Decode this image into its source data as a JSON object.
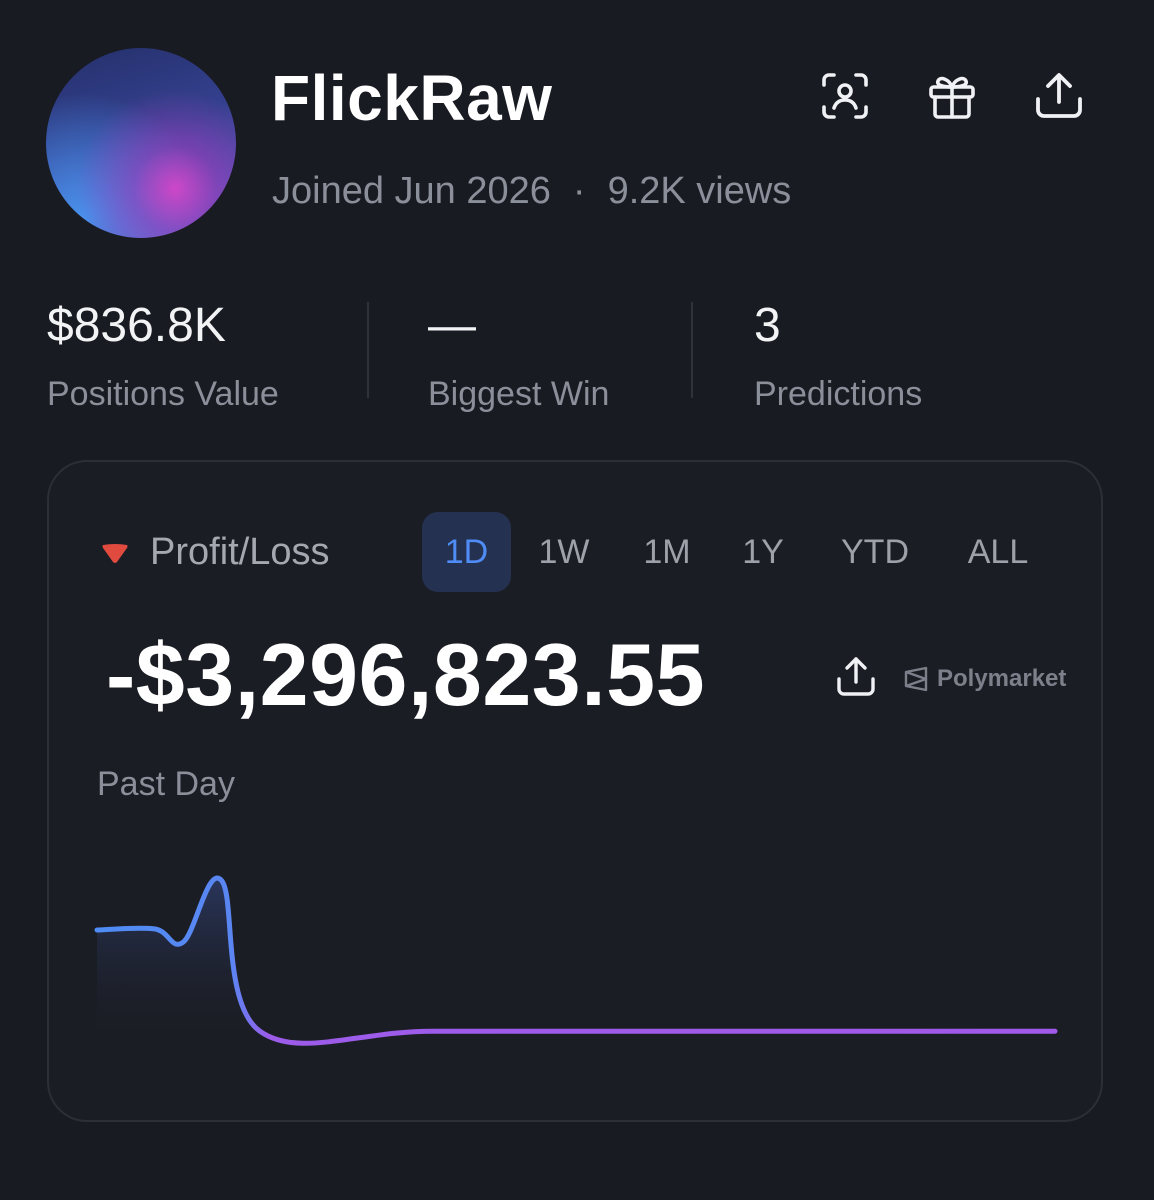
{
  "profile": {
    "username": "FlickRaw",
    "joined": "Joined Jun 2026",
    "separator": "·",
    "views": "9.2K views"
  },
  "header_actions": [
    {
      "icon": "scan-user-icon"
    },
    {
      "icon": "gift-icon"
    },
    {
      "icon": "share-icon"
    }
  ],
  "stats": [
    {
      "value": "$836.8K",
      "label": "Positions Value"
    },
    {
      "value": "—",
      "label": "Biggest Win"
    },
    {
      "value": "3",
      "label": "Predictions"
    }
  ],
  "pnl_card": {
    "label": "Profit/Loss",
    "indicator_color": "#e04a3f",
    "tabs": [
      "1D",
      "1W",
      "1M",
      "1Y",
      "YTD",
      "ALL"
    ],
    "active_tab": "1D",
    "value": "-$3,296,823.55",
    "brand": "Polymarket",
    "period_label": "Past Day",
    "accent": "#4f8cf5"
  },
  "chart_data": {
    "type": "line",
    "title": "",
    "series": [
      {
        "values": [
          20,
          20.5,
          14.5,
          42.5,
          -26,
          -26,
          -26,
          -26,
          -26
        ]
      }
    ],
    "x": [
      0,
      0.06,
      0.09,
      0.13,
      0.17,
      0.35,
      0.6,
      0.85,
      1.0
    ],
    "ylim": [
      -30,
      45
    ],
    "grid": false,
    "gradient": [
      "#4f8cf5",
      "#a258e8"
    ]
  }
}
